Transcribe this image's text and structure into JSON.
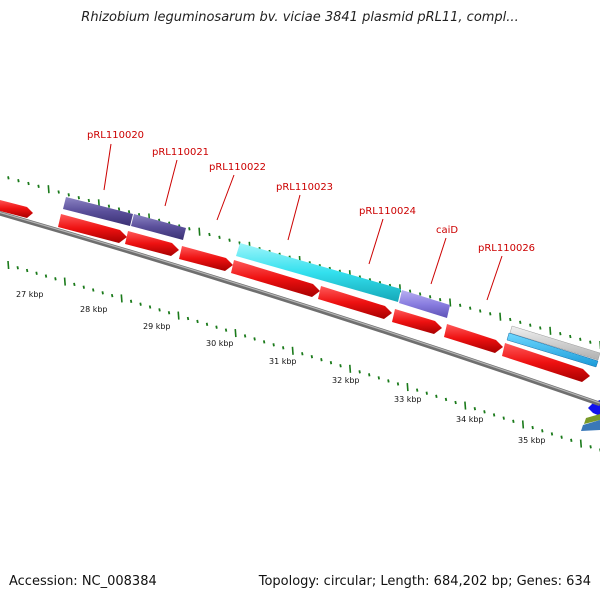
{
  "map": {
    "title": "Rhizobium leguminosarum bv. viciae 3841 plasmid pRL11, compl...",
    "accession": "Accession: NC_008384",
    "summary": "Topology: circular; Length: 684,202 bp; Genes: 634",
    "scale_labels": [
      "27 kbp",
      "28 kbp",
      "29 kbp",
      "30 kbp",
      "31 kbp",
      "32 kbp",
      "33 kbp",
      "34 kbp",
      "35 kbp"
    ],
    "gene_labels": [
      "pRL110020",
      "pRL110021",
      "pRL110022",
      "pRL110023",
      "pRL110024",
      "caiD",
      "pRL110026"
    ]
  },
  "colors": {
    "label": "#cc0000",
    "tick": "#1a7a1a",
    "backbone": "#888888",
    "cds": "#ee1111",
    "cyan_feature": "#33e0ee",
    "purple_feature": "#5a4f9a",
    "lavender_feature": "#8a7ee0"
  }
}
